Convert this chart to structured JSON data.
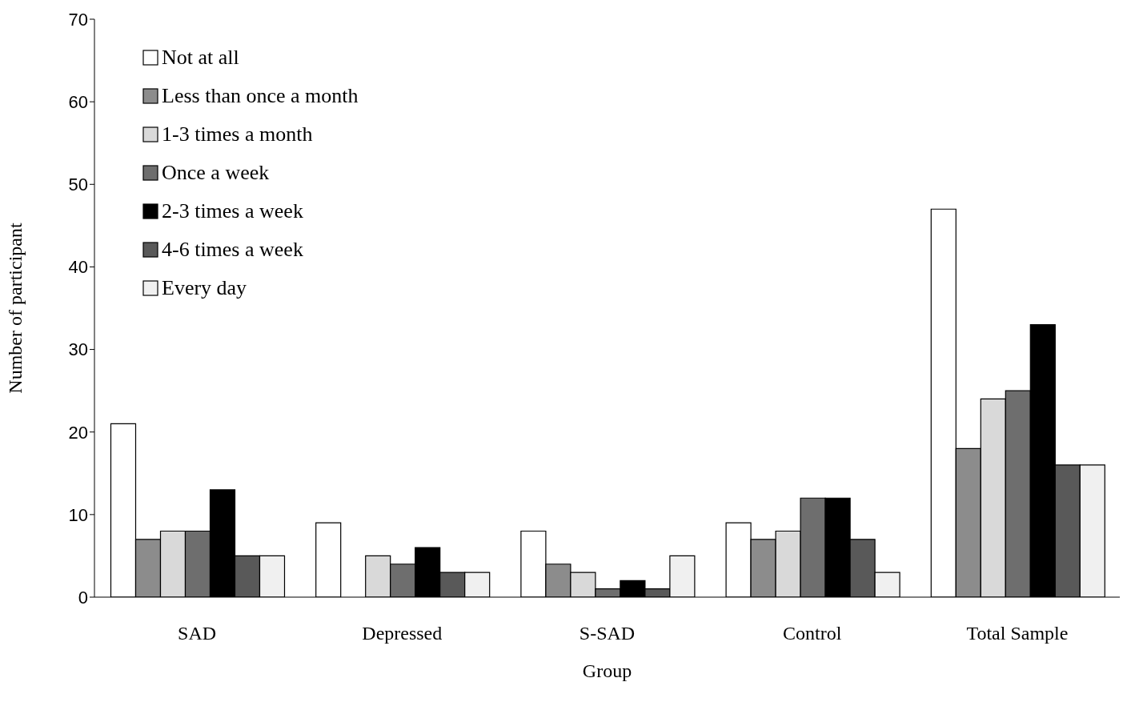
{
  "chart_data": {
    "type": "bar",
    "xlabel": "Group",
    "ylabel": "Number of participant",
    "categories": [
      "SAD",
      "Depressed",
      "S-SAD",
      "Control",
      "Total Sample"
    ],
    "series": [
      {
        "name": "Not at all",
        "color": "#ffffff",
        "values": [
          21,
          9,
          8,
          9,
          47
        ]
      },
      {
        "name": "Less than once a month",
        "color": "#8c8c8c",
        "values": [
          7,
          0,
          4,
          7,
          18
        ]
      },
      {
        "name": "1-3 times a month",
        "color": "#d9d9d9",
        "values": [
          8,
          5,
          3,
          8,
          24
        ]
      },
      {
        "name": "Once a week",
        "color": "#6e6e6e",
        "values": [
          8,
          4,
          1,
          12,
          25
        ]
      },
      {
        "name": "2-3 times a week",
        "color": "#000000",
        "values": [
          13,
          6,
          2,
          12,
          33
        ]
      },
      {
        "name": "4-6 times a week",
        "color": "#595959",
        "values": [
          5,
          3,
          1,
          7,
          16
        ]
      },
      {
        "name": "Every day",
        "color": "#f0f0f0",
        "values": [
          5,
          3,
          5,
          3,
          16
        ]
      }
    ],
    "ylim": [
      0,
      70
    ],
    "yticks": [
      0,
      10,
      20,
      30,
      40,
      50,
      60,
      70
    ],
    "grid": false,
    "legend": "top left"
  }
}
